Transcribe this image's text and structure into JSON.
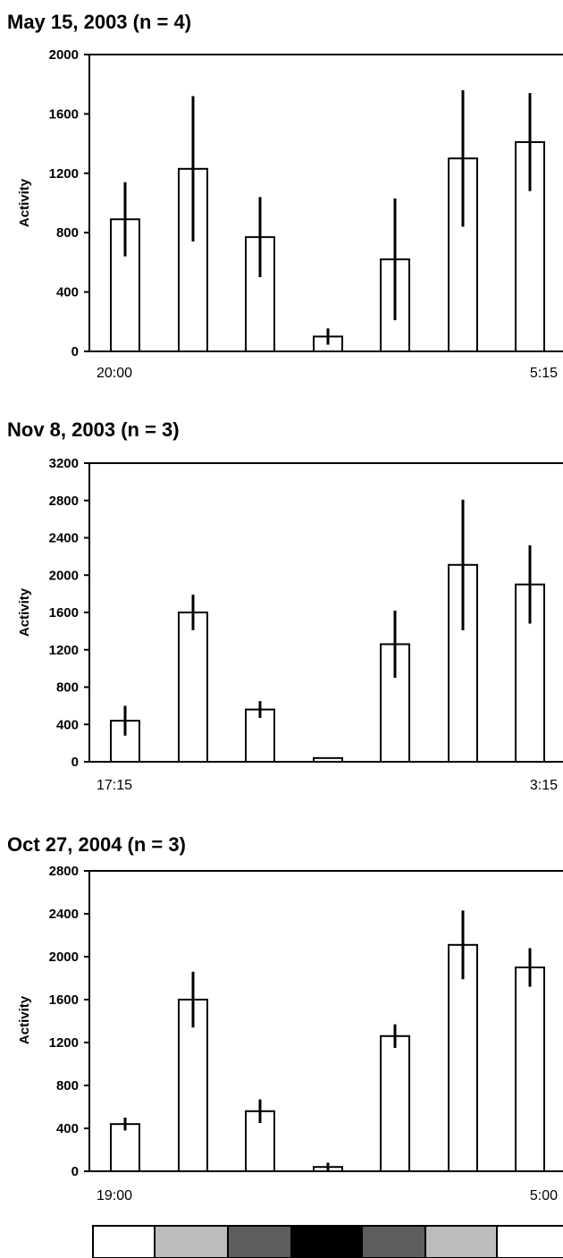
{
  "chart_data": [
    {
      "type": "bar",
      "title": "May 15, 2003 (n = 4)",
      "xlabel": "",
      "ylabel": "Activity",
      "ylim": [
        0,
        2000
      ],
      "yticks": [
        0,
        400,
        800,
        1200,
        1600,
        2000
      ],
      "x_start_label": "20:00",
      "x_end_label": "5:15",
      "values": [
        890,
        1230,
        770,
        100,
        620,
        1300,
        1410
      ],
      "errors": [
        250,
        490,
        270,
        55,
        410,
        460,
        330
      ],
      "bar_fill": "#ffffff",
      "grid": false
    },
    {
      "type": "bar",
      "title": "Nov 8, 2003 (n = 3)",
      "xlabel": "",
      "ylabel": "Activity",
      "ylim": [
        0,
        3200
      ],
      "yticks": [
        0,
        400,
        800,
        1200,
        1600,
        2000,
        2400,
        2800,
        3200
      ],
      "x_start_label": "17:15",
      "x_end_label": "3:15",
      "values": [
        440,
        1600,
        560,
        40,
        1260,
        2110,
        1900
      ],
      "errors": [
        160,
        190,
        90,
        0,
        360,
        700,
        420
      ],
      "bar_fill": "#ffffff",
      "grid": false
    },
    {
      "type": "bar",
      "title": "Oct 27, 2004 (n = 3)",
      "xlabel": "",
      "ylabel": "Activity",
      "ylim": [
        0,
        2800
      ],
      "yticks": [
        0,
        400,
        800,
        1200,
        1600,
        2000,
        2400,
        2800
      ],
      "x_start_label": "19:00",
      "x_end_label": "5:00",
      "values": [
        440,
        1600,
        560,
        40,
        1260,
        2110,
        1900
      ],
      "errors": [
        60,
        260,
        110,
        40,
        110,
        320,
        180
      ],
      "bar_fill": "#ffffff",
      "grid": false
    }
  ],
  "light_strip": {
    "segments": [
      {
        "shade": "#ffffff"
      },
      {
        "shade": "#bdbdbd"
      },
      {
        "shade": "#5e5e5e"
      },
      {
        "shade": "#000000"
      },
      {
        "shade": "#5e5e5e"
      },
      {
        "shade": "#bdbdbd"
      },
      {
        "shade": "#ffffff"
      }
    ]
  }
}
